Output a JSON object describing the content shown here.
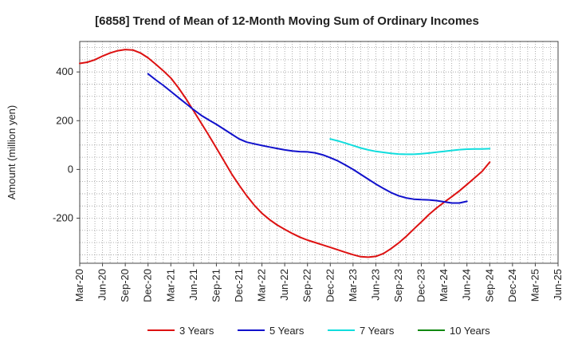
{
  "chart_data": {
    "type": "line",
    "title": "[6858]  Trend of Mean of 12-Month Moving Sum of Ordinary Incomes",
    "xlabel": "",
    "ylabel": "Amount (million yen)",
    "ylim": [
      -385,
      525
    ],
    "yticks": [
      -200,
      0,
      200,
      400
    ],
    "grid": true,
    "legend_position": "bottom",
    "x_tick_labels": [
      "Mar-20",
      "Jun-20",
      "Sep-20",
      "Dec-20",
      "Mar-21",
      "Jun-21",
      "Sep-21",
      "Dec-21",
      "Mar-22",
      "Jun-22",
      "Sep-22",
      "Dec-22",
      "Mar-23",
      "Jun-23",
      "Sep-23",
      "Dec-23",
      "Mar-24",
      "Jun-24",
      "Sep-24",
      "Dec-24",
      "Mar-25",
      "Jun-25"
    ],
    "x_months": [
      "Mar-20",
      "Apr-20",
      "May-20",
      "Jun-20",
      "Jul-20",
      "Aug-20",
      "Sep-20",
      "Oct-20",
      "Nov-20",
      "Dec-20",
      "Jan-21",
      "Feb-21",
      "Mar-21",
      "Apr-21",
      "May-21",
      "Jun-21",
      "Jul-21",
      "Aug-21",
      "Sep-21",
      "Oct-21",
      "Nov-21",
      "Dec-21",
      "Jan-22",
      "Feb-22",
      "Mar-22",
      "Apr-22",
      "May-22",
      "Jun-22",
      "Jul-22",
      "Aug-22",
      "Sep-22",
      "Oct-22",
      "Nov-22",
      "Dec-22",
      "Jan-23",
      "Feb-23",
      "Mar-23",
      "Apr-23",
      "May-23",
      "Jun-23",
      "Jul-23",
      "Aug-23",
      "Sep-23",
      "Oct-23",
      "Nov-23",
      "Dec-23",
      "Jan-24",
      "Feb-24",
      "Mar-24",
      "Apr-24",
      "May-24",
      "Jun-24",
      "Jul-24",
      "Aug-24",
      "Sep-24",
      "Oct-24",
      "Nov-24",
      "Dec-24",
      "Jan-25",
      "Feb-25",
      "Mar-25",
      "Apr-25",
      "May-25",
      "Jun-25"
    ],
    "series": [
      {
        "name": "3 Years",
        "color": "#dd1111",
        "start_index": 0,
        "values": [
          435,
          440,
          450,
          465,
          478,
          487,
          492,
          490,
          478,
          458,
          432,
          405,
          375,
          335,
          290,
          240,
          190,
          140,
          88,
          35,
          -18,
          -65,
          -108,
          -147,
          -180,
          -206,
          -228,
          -246,
          -263,
          -278,
          -290,
          -300,
          -310,
          -320,
          -330,
          -340,
          -350,
          -358,
          -360,
          -357,
          -345,
          -325,
          -302,
          -275,
          -245,
          -215,
          -185,
          -158,
          -135,
          -112,
          -88,
          -62,
          -35,
          -8,
          30
        ]
      },
      {
        "name": "5 Years",
        "color": "#1111cc",
        "start_index": 9,
        "values": [
          392,
          368,
          345,
          320,
          295,
          270,
          245,
          222,
          203,
          185,
          165,
          145,
          125,
          112,
          105,
          98,
          92,
          86,
          80,
          76,
          73,
          72,
          68,
          60,
          48,
          35,
          18,
          0,
          -20,
          -40,
          -60,
          -78,
          -95,
          -108,
          -117,
          -122,
          -124,
          -125,
          -128,
          -133,
          -138,
          -138,
          -131
        ]
      },
      {
        "name": "7 Years",
        "color": "#11dddd",
        "start_index": 33,
        "values": [
          125,
          117,
          108,
          98,
          88,
          80,
          74,
          70,
          66,
          63,
          62,
          62,
          64,
          67,
          71,
          74,
          78,
          81,
          83,
          84,
          84,
          85
        ]
      },
      {
        "name": "10 Years",
        "color": "#118811",
        "start_index": 0,
        "values": []
      }
    ]
  }
}
